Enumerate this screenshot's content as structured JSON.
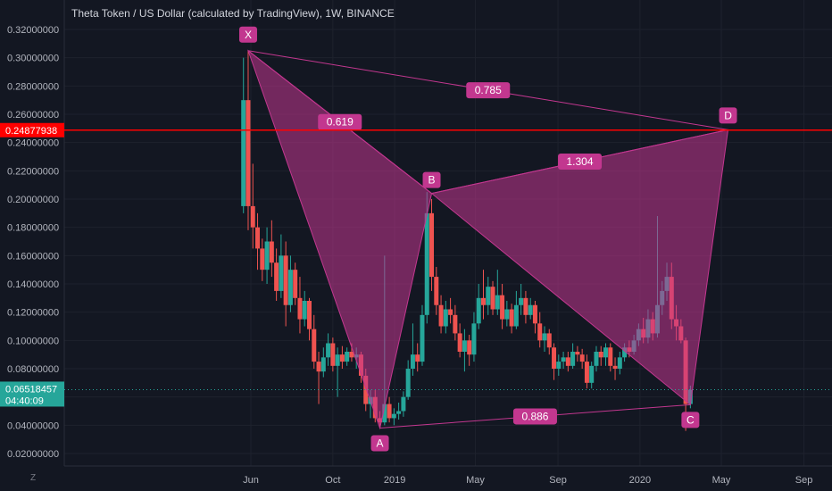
{
  "chart_data": {
    "type": "candlestick",
    "title": "Theta Token / US Dollar (calculated by TradingView), 1W, BINANCE",
    "symbol": "Theta Token / US Dollar (calculated by TradingView)",
    "interval": "1W",
    "exchange": "BINANCE",
    "ylim": [
      0.01,
      0.33
    ],
    "y_ticks": [
      "0.02000000",
      "0.04000000",
      "0.06000000",
      "0.08000000",
      "0.10000000",
      "0.12000000",
      "0.14000000",
      "0.16000000",
      "0.18000000",
      "0.20000000",
      "0.22000000",
      "0.24000000",
      "0.26000000",
      "0.28000000",
      "0.30000000",
      "0.32000000"
    ],
    "x_ticks": [
      {
        "label": "Jun",
        "date": "2018-06-01"
      },
      {
        "label": "Oct",
        "date": "2018-10-01"
      },
      {
        "label": "2019",
        "date": "2019-01-01"
      },
      {
        "label": "May",
        "date": "2019-05-01"
      },
      {
        "label": "Sep",
        "date": "2019-09-01"
      },
      {
        "label": "2020",
        "date": "2020-01-01"
      },
      {
        "label": "May",
        "date": "2020-05-01"
      },
      {
        "label": "Sep",
        "date": "2020-09-01"
      }
    ],
    "up_color": "#26a69a",
    "down_color": "#ef5350",
    "candles": [
      {
        "date": "2018-05-21",
        "o": 0.195,
        "h": 0.3,
        "l": 0.19,
        "c": 0.27
      },
      {
        "date": "2018-05-28",
        "o": 0.27,
        "h": 0.305,
        "l": 0.178,
        "c": 0.195
      },
      {
        "date": "2018-06-04",
        "o": 0.195,
        "h": 0.225,
        "l": 0.165,
        "c": 0.18
      },
      {
        "date": "2018-06-11",
        "o": 0.18,
        "h": 0.19,
        "l": 0.15,
        "c": 0.165
      },
      {
        "date": "2018-06-18",
        "o": 0.165,
        "h": 0.172,
        "l": 0.142,
        "c": 0.15
      },
      {
        "date": "2018-06-25",
        "o": 0.15,
        "h": 0.18,
        "l": 0.14,
        "c": 0.17
      },
      {
        "date": "2018-07-02",
        "o": 0.17,
        "h": 0.185,
        "l": 0.145,
        "c": 0.155
      },
      {
        "date": "2018-07-09",
        "o": 0.155,
        "h": 0.165,
        "l": 0.128,
        "c": 0.135
      },
      {
        "date": "2018-07-16",
        "o": 0.135,
        "h": 0.175,
        "l": 0.13,
        "c": 0.16
      },
      {
        "date": "2018-07-23",
        "o": 0.16,
        "h": 0.17,
        "l": 0.11,
        "c": 0.125
      },
      {
        "date": "2018-07-30",
        "o": 0.125,
        "h": 0.16,
        "l": 0.12,
        "c": 0.15
      },
      {
        "date": "2018-08-06",
        "o": 0.15,
        "h": 0.155,
        "l": 0.125,
        "c": 0.13
      },
      {
        "date": "2018-08-13",
        "o": 0.13,
        "h": 0.145,
        "l": 0.105,
        "c": 0.115
      },
      {
        "date": "2018-08-20",
        "o": 0.115,
        "h": 0.135,
        "l": 0.11,
        "c": 0.128
      },
      {
        "date": "2018-08-27",
        "o": 0.128,
        "h": 0.13,
        "l": 0.1,
        "c": 0.108
      },
      {
        "date": "2018-09-03",
        "o": 0.108,
        "h": 0.118,
        "l": 0.08,
        "c": 0.085
      },
      {
        "date": "2018-09-10",
        "o": 0.085,
        "h": 0.092,
        "l": 0.055,
        "c": 0.078
      },
      {
        "date": "2018-09-17",
        "o": 0.078,
        "h": 0.095,
        "l": 0.074,
        "c": 0.088
      },
      {
        "date": "2018-09-24",
        "o": 0.088,
        "h": 0.105,
        "l": 0.082,
        "c": 0.098
      },
      {
        "date": "2018-10-01",
        "o": 0.098,
        "h": 0.102,
        "l": 0.078,
        "c": 0.082
      },
      {
        "date": "2018-10-08",
        "o": 0.082,
        "h": 0.095,
        "l": 0.06,
        "c": 0.09
      },
      {
        "date": "2018-10-15",
        "o": 0.09,
        "h": 0.096,
        "l": 0.08,
        "c": 0.085
      },
      {
        "date": "2018-10-22",
        "o": 0.085,
        "h": 0.095,
        "l": 0.082,
        "c": 0.092
      },
      {
        "date": "2018-10-29",
        "o": 0.092,
        "h": 0.098,
        "l": 0.085,
        "c": 0.088
      },
      {
        "date": "2018-11-05",
        "o": 0.088,
        "h": 0.095,
        "l": 0.08,
        "c": 0.09
      },
      {
        "date": "2018-11-12",
        "o": 0.09,
        "h": 0.092,
        "l": 0.07,
        "c": 0.075
      },
      {
        "date": "2018-11-19",
        "o": 0.075,
        "h": 0.08,
        "l": 0.05,
        "c": 0.055
      },
      {
        "date": "2018-11-26",
        "o": 0.055,
        "h": 0.065,
        "l": 0.045,
        "c": 0.06
      },
      {
        "date": "2018-12-03",
        "o": 0.06,
        "h": 0.065,
        "l": 0.042,
        "c": 0.045
      },
      {
        "date": "2018-12-10",
        "o": 0.045,
        "h": 0.05,
        "l": 0.038,
        "c": 0.042
      },
      {
        "date": "2018-12-17",
        "o": 0.042,
        "h": 0.16,
        "l": 0.04,
        "c": 0.055
      },
      {
        "date": "2018-12-24",
        "o": 0.055,
        "h": 0.06,
        "l": 0.042,
        "c": 0.045
      },
      {
        "date": "2018-12-31",
        "o": 0.045,
        "h": 0.052,
        "l": 0.04,
        "c": 0.048
      },
      {
        "date": "2019-01-07",
        "o": 0.048,
        "h": 0.056,
        "l": 0.044,
        "c": 0.05
      },
      {
        "date": "2019-01-14",
        "o": 0.05,
        "h": 0.064,
        "l": 0.046,
        "c": 0.06
      },
      {
        "date": "2019-01-21",
        "o": 0.06,
        "h": 0.086,
        "l": 0.058,
        "c": 0.08
      },
      {
        "date": "2019-01-28",
        "o": 0.08,
        "h": 0.112,
        "l": 0.075,
        "c": 0.09
      },
      {
        "date": "2019-02-04",
        "o": 0.09,
        "h": 0.098,
        "l": 0.078,
        "c": 0.085
      },
      {
        "date": "2019-02-11",
        "o": 0.085,
        "h": 0.125,
        "l": 0.082,
        "c": 0.118
      },
      {
        "date": "2019-02-18",
        "o": 0.118,
        "h": 0.205,
        "l": 0.112,
        "c": 0.19
      },
      {
        "date": "2019-02-25",
        "o": 0.19,
        "h": 0.2,
        "l": 0.135,
        "c": 0.145
      },
      {
        "date": "2019-03-04",
        "o": 0.145,
        "h": 0.152,
        "l": 0.118,
        "c": 0.125
      },
      {
        "date": "2019-03-11",
        "o": 0.125,
        "h": 0.132,
        "l": 0.105,
        "c": 0.11
      },
      {
        "date": "2019-03-18",
        "o": 0.11,
        "h": 0.128,
        "l": 0.105,
        "c": 0.122
      },
      {
        "date": "2019-03-25",
        "o": 0.122,
        "h": 0.13,
        "l": 0.112,
        "c": 0.118
      },
      {
        "date": "2019-04-01",
        "o": 0.118,
        "h": 0.125,
        "l": 0.1,
        "c": 0.105
      },
      {
        "date": "2019-04-08",
        "o": 0.105,
        "h": 0.112,
        "l": 0.088,
        "c": 0.092
      },
      {
        "date": "2019-04-15",
        "o": 0.092,
        "h": 0.108,
        "l": 0.078,
        "c": 0.1
      },
      {
        "date": "2019-04-22",
        "o": 0.1,
        "h": 0.104,
        "l": 0.082,
        "c": 0.09
      },
      {
        "date": "2019-04-29",
        "o": 0.09,
        "h": 0.12,
        "l": 0.085,
        "c": 0.112
      },
      {
        "date": "2019-05-06",
        "o": 0.112,
        "h": 0.14,
        "l": 0.108,
        "c": 0.13
      },
      {
        "date": "2019-05-13",
        "o": 0.13,
        "h": 0.15,
        "l": 0.115,
        "c": 0.125
      },
      {
        "date": "2019-05-20",
        "o": 0.125,
        "h": 0.145,
        "l": 0.118,
        "c": 0.138
      },
      {
        "date": "2019-05-27",
        "o": 0.138,
        "h": 0.142,
        "l": 0.118,
        "c": 0.122
      },
      {
        "date": "2019-06-03",
        "o": 0.122,
        "h": 0.15,
        "l": 0.118,
        "c": 0.132
      },
      {
        "date": "2019-06-10",
        "o": 0.132,
        "h": 0.14,
        "l": 0.108,
        "c": 0.115
      },
      {
        "date": "2019-06-17",
        "o": 0.115,
        "h": 0.128,
        "l": 0.11,
        "c": 0.122
      },
      {
        "date": "2019-06-24",
        "o": 0.122,
        "h": 0.126,
        "l": 0.105,
        "c": 0.11
      },
      {
        "date": "2019-07-01",
        "o": 0.11,
        "h": 0.135,
        "l": 0.108,
        "c": 0.125
      },
      {
        "date": "2019-07-08",
        "o": 0.125,
        "h": 0.14,
        "l": 0.118,
        "c": 0.13
      },
      {
        "date": "2019-07-15",
        "o": 0.13,
        "h": 0.135,
        "l": 0.112,
        "c": 0.118
      },
      {
        "date": "2019-07-22",
        "o": 0.118,
        "h": 0.13,
        "l": 0.115,
        "c": 0.125
      },
      {
        "date": "2019-07-29",
        "o": 0.125,
        "h": 0.128,
        "l": 0.105,
        "c": 0.112
      },
      {
        "date": "2019-08-05",
        "o": 0.112,
        "h": 0.12,
        "l": 0.095,
        "c": 0.1
      },
      {
        "date": "2019-08-12",
        "o": 0.1,
        "h": 0.11,
        "l": 0.092,
        "c": 0.105
      },
      {
        "date": "2019-08-19",
        "o": 0.105,
        "h": 0.108,
        "l": 0.09,
        "c": 0.095
      },
      {
        "date": "2019-08-26",
        "o": 0.095,
        "h": 0.098,
        "l": 0.072,
        "c": 0.08
      },
      {
        "date": "2019-09-02",
        "o": 0.08,
        "h": 0.09,
        "l": 0.075,
        "c": 0.085
      },
      {
        "date": "2019-09-09",
        "o": 0.085,
        "h": 0.092,
        "l": 0.08,
        "c": 0.088
      },
      {
        "date": "2019-09-16",
        "o": 0.088,
        "h": 0.092,
        "l": 0.078,
        "c": 0.082
      },
      {
        "date": "2019-09-23",
        "o": 0.082,
        "h": 0.098,
        "l": 0.08,
        "c": 0.092
      },
      {
        "date": "2019-09-30",
        "o": 0.092,
        "h": 0.096,
        "l": 0.085,
        "c": 0.09
      },
      {
        "date": "2019-10-07",
        "o": 0.09,
        "h": 0.094,
        "l": 0.08,
        "c": 0.085
      },
      {
        "date": "2019-10-14",
        "o": 0.085,
        "h": 0.09,
        "l": 0.066,
        "c": 0.07
      },
      {
        "date": "2019-10-21",
        "o": 0.07,
        "h": 0.085,
        "l": 0.066,
        "c": 0.082
      },
      {
        "date": "2019-10-28",
        "o": 0.082,
        "h": 0.096,
        "l": 0.078,
        "c": 0.092
      },
      {
        "date": "2019-11-04",
        "o": 0.092,
        "h": 0.096,
        "l": 0.082,
        "c": 0.088
      },
      {
        "date": "2019-11-11",
        "o": 0.088,
        "h": 0.098,
        "l": 0.082,
        "c": 0.095
      },
      {
        "date": "2019-11-18",
        "o": 0.095,
        "h": 0.098,
        "l": 0.078,
        "c": 0.082
      },
      {
        "date": "2019-11-25",
        "o": 0.082,
        "h": 0.088,
        "l": 0.072,
        "c": 0.08
      },
      {
        "date": "2019-12-02",
        "o": 0.08,
        "h": 0.092,
        "l": 0.076,
        "c": 0.088
      },
      {
        "date": "2019-12-09",
        "o": 0.088,
        "h": 0.098,
        "l": 0.085,
        "c": 0.095
      },
      {
        "date": "2019-12-16",
        "o": 0.095,
        "h": 0.1,
        "l": 0.088,
        "c": 0.092
      },
      {
        "date": "2019-12-23",
        "o": 0.092,
        "h": 0.104,
        "l": 0.09,
        "c": 0.1
      },
      {
        "date": "2019-12-30",
        "o": 0.1,
        "h": 0.112,
        "l": 0.096,
        "c": 0.108
      },
      {
        "date": "2020-01-06",
        "o": 0.108,
        "h": 0.116,
        "l": 0.098,
        "c": 0.102
      },
      {
        "date": "2020-01-13",
        "o": 0.102,
        "h": 0.122,
        "l": 0.098,
        "c": 0.115
      },
      {
        "date": "2020-01-20",
        "o": 0.115,
        "h": 0.12,
        "l": 0.1,
        "c": 0.105
      },
      {
        "date": "2020-01-27",
        "o": 0.105,
        "h": 0.188,
        "l": 0.102,
        "c": 0.125
      },
      {
        "date": "2020-02-03",
        "o": 0.125,
        "h": 0.142,
        "l": 0.118,
        "c": 0.135
      },
      {
        "date": "2020-02-10",
        "o": 0.135,
        "h": 0.155,
        "l": 0.128,
        "c": 0.145
      },
      {
        "date": "2020-02-17",
        "o": 0.145,
        "h": 0.155,
        "l": 0.108,
        "c": 0.115
      },
      {
        "date": "2020-02-24",
        "o": 0.115,
        "h": 0.125,
        "l": 0.1,
        "c": 0.11
      },
      {
        "date": "2020-03-02",
        "o": 0.11,
        "h": 0.115,
        "l": 0.098,
        "c": 0.1
      },
      {
        "date": "2020-03-09",
        "o": 0.1,
        "h": 0.102,
        "l": 0.036,
        "c": 0.055
      },
      {
        "date": "2020-03-16",
        "o": 0.055,
        "h": 0.068,
        "l": 0.052,
        "c": 0.065
      }
    ],
    "current_price": {
      "value": 0.06518457,
      "label": "0.06518457",
      "countdown": "04:40:09",
      "color": "#26a69a"
    },
    "horizontal_line": {
      "value": 0.24877938,
      "label": "0.24877938",
      "color": "#ff0000"
    },
    "harmonic_pattern": {
      "color": "#c2378f",
      "points": [
        {
          "label": "X",
          "date": "2018-05-28",
          "price": 0.305
        },
        {
          "label": "A",
          "date": "2018-12-10",
          "price": 0.038
        },
        {
          "label": "B",
          "date": "2019-02-25",
          "price": 0.204
        },
        {
          "label": "C",
          "date": "2020-03-16",
          "price": 0.0545
        },
        {
          "label": "D",
          "date": "2020-05-11",
          "price": 0.249
        }
      ],
      "ratios": [
        {
          "label": "0.619",
          "between": [
            "X",
            "B"
          ]
        },
        {
          "label": "0.785",
          "between": [
            "X",
            "D"
          ]
        },
        {
          "label": "1.304",
          "between": [
            "B",
            "D"
          ]
        },
        {
          "label": "0.886",
          "between": [
            "A",
            "C"
          ]
        }
      ]
    }
  },
  "corner_icon": "Z"
}
